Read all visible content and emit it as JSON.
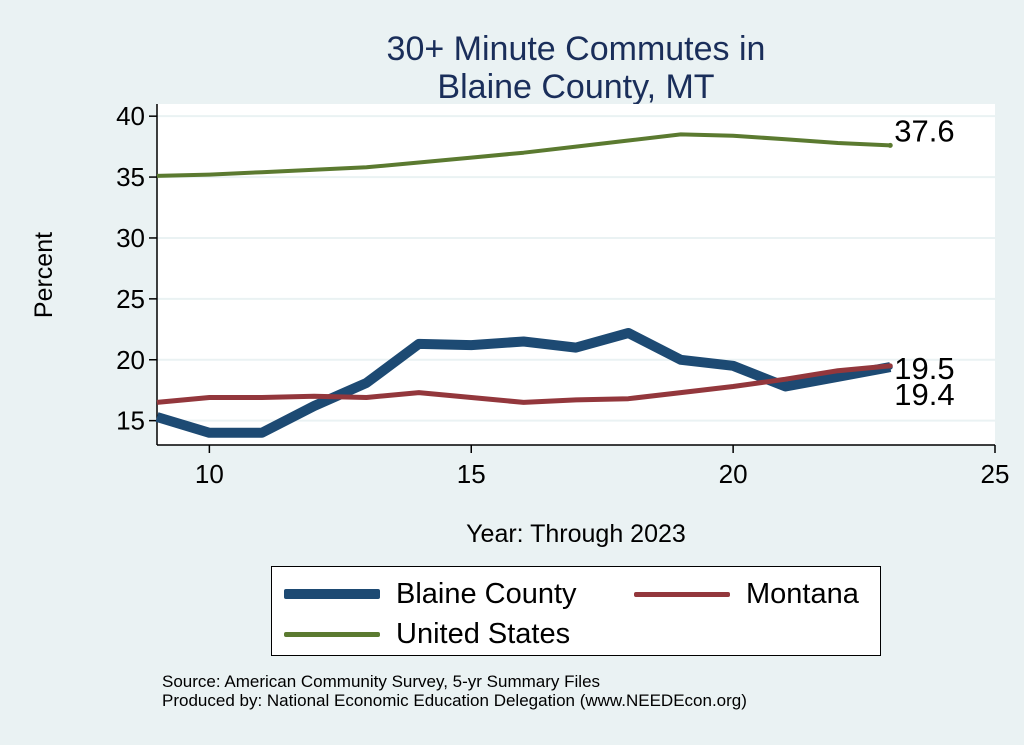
{
  "chart_data": {
    "type": "line",
    "title_lines": [
      "30+ Minute Commutes in",
      "Blaine County, MT"
    ],
    "xlabel": "Year: Through 2023",
    "ylabel": "Percent",
    "xlim": [
      9,
      25
    ],
    "ylim": [
      13,
      41
    ],
    "xticks": [
      10,
      15,
      20,
      25
    ],
    "yticks": [
      15,
      20,
      25,
      30,
      35,
      40
    ],
    "grid": "horizontal",
    "legend_position": "bottom",
    "x": [
      9,
      10,
      11,
      12,
      13,
      14,
      15,
      16,
      17,
      18,
      19,
      20,
      21,
      22,
      23
    ],
    "series": [
      {
        "name": "Blaine County",
        "color": "#1d4a73",
        "values": [
          15.3,
          14.0,
          14.0,
          16.2,
          18.1,
          21.3,
          21.2,
          21.5,
          21.0,
          22.2,
          20.0,
          19.5,
          17.8,
          18.6,
          19.4
        ],
        "end_label": "19.4"
      },
      {
        "name": "Montana",
        "color": "#93373c",
        "values": [
          16.5,
          16.9,
          16.9,
          17.0,
          16.9,
          17.3,
          16.9,
          16.5,
          16.7,
          16.8,
          17.3,
          17.8,
          18.4,
          19.1,
          19.5
        ],
        "end_label": "19.5"
      },
      {
        "name": "United States",
        "color": "#5b7a30",
        "values": [
          35.1,
          35.2,
          35.4,
          35.6,
          35.8,
          36.2,
          36.6,
          37.0,
          37.5,
          38.0,
          38.5,
          38.4,
          38.1,
          37.8,
          37.6
        ],
        "end_label": "37.6"
      }
    ]
  },
  "footer": {
    "source": "Source: American Community Survey, 5-yr Summary Files",
    "produced_by": "Produced by: National Economic Education Delegation (www.NEEDEcon.org)"
  }
}
